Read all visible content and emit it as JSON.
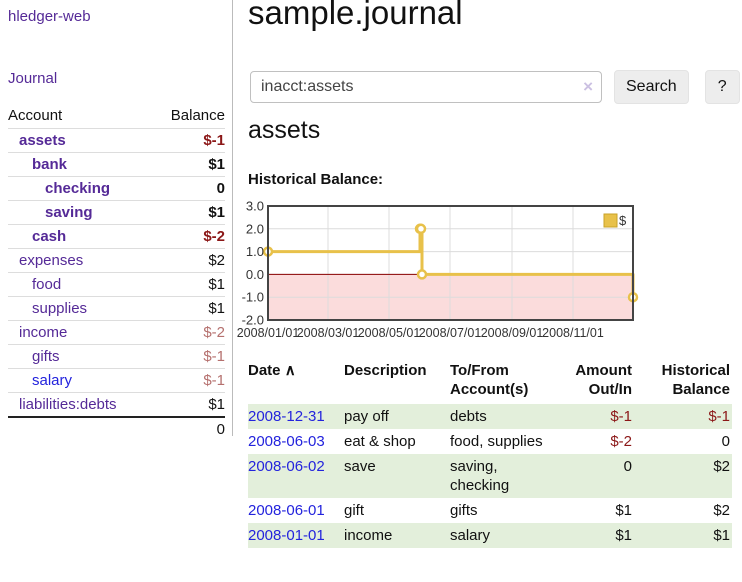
{
  "colors": {
    "purple": "#552a97",
    "blue": "#2323dd",
    "neg": "#8b1717",
    "rose": "#b5706e",
    "rowgreen": "#e3efdb",
    "gold": "#e8c14a",
    "goldborder": "#c9a227",
    "pink": "#fbdcdc",
    "zerored": "#8b0000",
    "grid": "#dcdcdc",
    "chartborder": "#444444",
    "btn": "#ededed",
    "divider": "#bbbbbb"
  },
  "app": {
    "brand": "hledger-web",
    "nav_journal": "Journal"
  },
  "sidebar": {
    "accounts_header": {
      "account": "Account",
      "balance": "Balance"
    },
    "rows": [
      {
        "name": "assets",
        "balance": "$-1",
        "depth": 0,
        "bold": true,
        "balance_style": "neg"
      },
      {
        "name": "bank",
        "balance": "$1",
        "depth": 1,
        "bold": true,
        "balance_style": "plain"
      },
      {
        "name": "checking",
        "balance": "0",
        "depth": 2,
        "bold": true,
        "balance_style": "plain"
      },
      {
        "name": "saving",
        "balance": "$1",
        "depth": 2,
        "bold": true,
        "balance_style": "plain"
      },
      {
        "name": "cash",
        "balance": "$-2",
        "depth": 1,
        "bold": true,
        "balance_style": "neg"
      },
      {
        "name": "expenses",
        "balance": "$2",
        "depth": 0,
        "bold": false,
        "balance_style": "plain"
      },
      {
        "name": "food",
        "balance": "$1",
        "depth": 1,
        "bold": false,
        "balance_style": "plain"
      },
      {
        "name": "supplies",
        "balance": "$1",
        "depth": 1,
        "bold": false,
        "balance_style": "plain"
      },
      {
        "name": "income",
        "balance": "$-2",
        "depth": 0,
        "bold": false,
        "balance_style": "rose"
      },
      {
        "name": "gifts",
        "balance": "$-1",
        "depth": 1,
        "bold": false,
        "balance_style": "rose"
      },
      {
        "name": "salary",
        "balance": "$-1",
        "depth": 1,
        "bold": false,
        "balance_style": "rose",
        "link_color": "blue"
      },
      {
        "name": "liabilities:debts",
        "balance": "$1",
        "depth": 0,
        "bold": false,
        "balance_style": "plain"
      }
    ],
    "total": "0"
  },
  "main": {
    "title": "sample.journal",
    "search": {
      "value": "inacct:assets",
      "placeholder": "",
      "clear_icon": "×",
      "button_label": "Search",
      "help_label": "?"
    },
    "account_heading": "assets",
    "chart_label": "Historical Balance:"
  },
  "chart_data": {
    "type": "line",
    "title": "Historical Balance",
    "series": [
      {
        "name": "$",
        "step": true,
        "points": [
          [
            "2008-01-01",
            1
          ],
          [
            "2008-06-01",
            2
          ],
          [
            "2008-06-02",
            2
          ],
          [
            "2008-06-03",
            0
          ],
          [
            "2008-12-31",
            -1
          ]
        ]
      }
    ],
    "xlim": [
      "2008-01-01",
      "2008-12-31"
    ],
    "ylim": [
      -2,
      3
    ],
    "y_ticks": [
      3,
      2,
      1,
      0,
      -1,
      -2
    ],
    "x_ticks": [
      "2008/01/01",
      "2008/03/01",
      "2008/05/01",
      "2008/07/01",
      "2008/09/01",
      "2008/11/01"
    ],
    "legend_position": "top-right",
    "grid": true,
    "negative_region_fill": true,
    "zero_line": true
  },
  "register": {
    "headers": {
      "date": "Date",
      "sort_icon": "∧",
      "description": "Description",
      "tofrom": "To/From Account(s)",
      "amount": "Amount Out/In",
      "balance": "Historical Balance"
    },
    "rows": [
      {
        "date": "2008-12-31",
        "description": "pay off",
        "accounts": "debts",
        "amount": "$-1",
        "balance": "$-1"
      },
      {
        "date": "2008-06-03",
        "description": "eat & shop",
        "accounts": "food, supplies",
        "amount": "$-2",
        "balance": "0"
      },
      {
        "date": "2008-06-02",
        "description": "save",
        "accounts": "saving, checking",
        "amount": "0",
        "balance": "$2"
      },
      {
        "date": "2008-06-01",
        "description": "gift",
        "accounts": "gifts",
        "amount": "$1",
        "balance": "$2"
      },
      {
        "date": "2008-01-01",
        "description": "income",
        "accounts": "salary",
        "amount": "$1",
        "balance": "$1"
      }
    ]
  }
}
